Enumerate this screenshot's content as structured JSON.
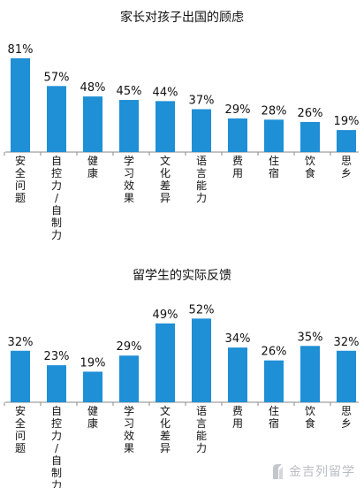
{
  "chart_data": [
    {
      "type": "bar",
      "title": "家长对孩子出国的顾虑",
      "categories": [
        "安全问题",
        "自控力/自制力",
        "健康",
        "学习效果",
        "文化差异",
        "语言能力",
        "费用",
        "住宿",
        "饮食",
        "思乡"
      ],
      "values": [
        81,
        57,
        48,
        45,
        44,
        37,
        29,
        28,
        26,
        19
      ],
      "value_labels": [
        "81%",
        "57%",
        "48%",
        "45%",
        "44%",
        "37%",
        "29%",
        "28%",
        "26%",
        "19%"
      ],
      "ylim": [
        0,
        100
      ],
      "grid": false,
      "color": "#1f8fd6"
    },
    {
      "type": "bar",
      "title": "留学生的实际反馈",
      "categories": [
        "安全问题",
        "自控力/自制力",
        "健康",
        "学习效果",
        "文化差异",
        "语言能力",
        "费用",
        "住宿",
        "饮食",
        "思乡"
      ],
      "values": [
        32,
        23,
        19,
        29,
        49,
        52,
        34,
        26,
        35,
        32
      ],
      "value_labels": [
        "32%",
        "23%",
        "19%",
        "29%",
        "49%",
        "52%",
        "34%",
        "26%",
        "35%",
        "32%"
      ],
      "ylim": [
        0,
        100
      ],
      "grid": false,
      "color": "#1f8fd6"
    }
  ],
  "watermark": {
    "text": "金吉列留学",
    "color": "#b9bcc2"
  }
}
